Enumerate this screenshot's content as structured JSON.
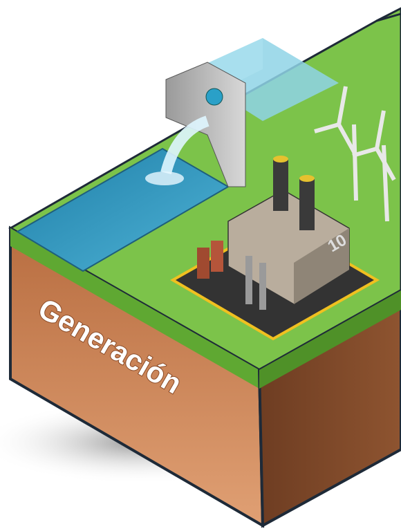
{
  "label": "Generación",
  "building_number": "10"
}
